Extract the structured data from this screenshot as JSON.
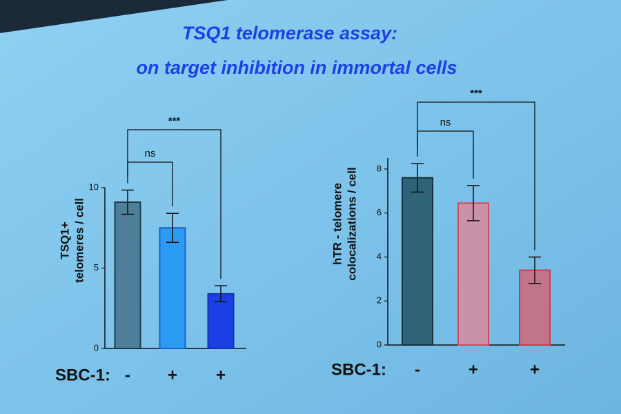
{
  "title": [
    "TSQ1 telomerase assay:",
    "on target inhibition in immortal cells"
  ],
  "chart_data": [
    {
      "type": "bar",
      "ylabel": [
        "TSQ1+",
        "telomeres / cell"
      ],
      "xlabel": "SBC-1:",
      "categories": [
        "-",
        "+",
        "+"
      ],
      "values": [
        9.1,
        7.5,
        3.4
      ],
      "errors": [
        0.75,
        0.9,
        0.5
      ],
      "colors": [
        "#4f7f98",
        "#2c9bf2",
        "#1b3fe4"
      ],
      "edge_colors": [
        "#1e3a4a",
        "#1a5fd0",
        "#1530b0"
      ],
      "ylim": [
        0,
        10
      ],
      "yticks": [
        0,
        5,
        10
      ],
      "comparisons": [
        {
          "from": 0,
          "to": 1,
          "label": "ns"
        },
        {
          "from": 0,
          "to": 2,
          "label": "***"
        }
      ]
    },
    {
      "type": "bar",
      "ylabel": [
        "hTR - telomere",
        "colocalizations / cell"
      ],
      "xlabel": "SBC-1:",
      "categories": [
        "-",
        "+",
        "+"
      ],
      "values": [
        7.6,
        6.45,
        3.4
      ],
      "errors": [
        0.65,
        0.8,
        0.6
      ],
      "colors": [
        "#2f6478",
        "#c893a8",
        "#c27488"
      ],
      "edge_colors": [
        "#16313d",
        "#d24a5c",
        "#d23a4c"
      ],
      "ylim": [
        0,
        8.5
      ],
      "yticks": [
        0,
        2,
        4,
        6,
        8
      ],
      "comparisons": [
        {
          "from": 0,
          "to": 1,
          "label": "ns"
        },
        {
          "from": 0,
          "to": 2,
          "label": "***"
        }
      ]
    }
  ]
}
